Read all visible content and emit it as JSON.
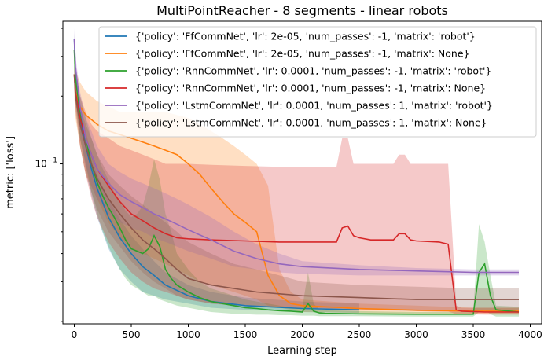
{
  "chart_data": {
    "type": "line",
    "title": "MultiPointReacher - 8 segments - linear robots",
    "xlabel": "Learning step",
    "ylabel": "metric: ['loss']",
    "xlim": [
      -100,
      4100
    ],
    "ylim": [
      0.0195,
      0.43
    ],
    "yscale": "log",
    "grid": false,
    "legend_position": "top-right",
    "x_ticks": [
      0,
      500,
      1000,
      1500,
      2000,
      2500,
      3000,
      3500,
      4000
    ],
    "x_tick_labels": [
      "0",
      "500",
      "1000",
      "1500",
      "2000",
      "2500",
      "3000",
      "3500",
      "4000"
    ],
    "y_ticks": [
      0.1
    ],
    "y_tick_labels": [
      "10^{-1}"
    ],
    "series": [
      {
        "name": "{'policy': 'FfCommNet', 'lr': 2e-05, 'num_passes': -1, 'matrix': 'robot'}",
        "color": "#1f77b4",
        "x": [
          0,
          10,
          50,
          100,
          150,
          200,
          300,
          400,
          500,
          600,
          700,
          800,
          1000,
          1200,
          1500,
          2000,
          2500
        ],
        "y": [
          0.36,
          0.25,
          0.16,
          0.12,
          0.095,
          0.078,
          0.058,
          0.047,
          0.04,
          0.035,
          0.032,
          0.029,
          0.026,
          0.0245,
          0.0235,
          0.0228,
          0.0225
        ],
        "upper": [
          0.38,
          0.27,
          0.18,
          0.14,
          0.11,
          0.09,
          0.07,
          0.057,
          0.048,
          0.042,
          0.037,
          0.033,
          0.029,
          0.027,
          0.0255,
          0.0245,
          0.024
        ],
        "lower": [
          0.3,
          0.2,
          0.13,
          0.095,
          0.072,
          0.058,
          0.042,
          0.034,
          0.03,
          0.027,
          0.026,
          0.025,
          0.024,
          0.023,
          0.0225,
          0.022,
          0.0218
        ]
      },
      {
        "name": "{'policy': 'FfCommNet', 'lr': 2e-05, 'num_passes': -1, 'matrix': None}",
        "color": "#ff7f0e",
        "x": [
          0,
          10,
          50,
          100,
          200,
          300,
          400,
          500,
          600,
          700,
          800,
          900,
          1000,
          1100,
          1200,
          1300,
          1400,
          1500,
          1600,
          1700,
          1800,
          1900,
          2000,
          2500,
          3000,
          3500,
          3900
        ],
        "y": [
          0.25,
          0.21,
          0.18,
          0.165,
          0.15,
          0.14,
          0.135,
          0.13,
          0.125,
          0.12,
          0.115,
          0.11,
          0.1,
          0.09,
          0.078,
          0.068,
          0.06,
          0.055,
          0.05,
          0.032,
          0.026,
          0.024,
          0.0235,
          0.0228,
          0.0224,
          0.0222,
          0.0222
        ],
        "upper": [
          0.3,
          0.26,
          0.23,
          0.21,
          0.19,
          0.18,
          0.17,
          0.17,
          0.17,
          0.17,
          0.17,
          0.165,
          0.16,
          0.15,
          0.14,
          0.13,
          0.12,
          0.11,
          0.1,
          0.08,
          0.034,
          0.027,
          0.025,
          0.024,
          0.0235,
          0.023,
          0.023
        ],
        "lower": [
          0.2,
          0.16,
          0.12,
          0.09,
          0.07,
          0.055,
          0.047,
          0.042,
          0.04,
          0.038,
          0.036,
          0.034,
          0.032,
          0.03,
          0.029,
          0.028,
          0.027,
          0.026,
          0.025,
          0.0235,
          0.023,
          0.0225,
          0.022,
          0.0218,
          0.0215,
          0.0215,
          0.0215
        ]
      },
      {
        "name": "{'policy': 'RnnCommNet', 'lr': 0.0001, 'num_passes': -1, 'matrix': 'robot'}",
        "color": "#2ca02c",
        "x": [
          0,
          10,
          50,
          100,
          150,
          200,
          250,
          300,
          350,
          400,
          450,
          500,
          550,
          600,
          650,
          700,
          750,
          800,
          850,
          900,
          1000,
          1100,
          1200,
          1300,
          1400,
          1500,
          1600,
          1700,
          1800,
          1900,
          2000,
          2050,
          2100,
          2150,
          2200,
          2500,
          3000,
          3400,
          3500,
          3550,
          3600,
          3650,
          3700,
          3900
        ],
        "y": [
          0.32,
          0.24,
          0.17,
          0.13,
          0.1,
          0.083,
          0.072,
          0.064,
          0.058,
          0.052,
          0.046,
          0.042,
          0.041,
          0.04,
          0.042,
          0.048,
          0.043,
          0.034,
          0.031,
          0.029,
          0.027,
          0.0255,
          0.0245,
          0.024,
          0.0235,
          0.023,
          0.0228,
          0.0225,
          0.0223,
          0.0222,
          0.022,
          0.024,
          0.0222,
          0.0218,
          0.0217,
          0.0216,
          0.0215,
          0.0215,
          0.0215,
          0.033,
          0.036,
          0.026,
          0.0225,
          0.022
        ],
        "upper": [
          0.36,
          0.27,
          0.2,
          0.16,
          0.13,
          0.11,
          0.095,
          0.085,
          0.075,
          0.068,
          0.062,
          0.058,
          0.06,
          0.065,
          0.08,
          0.105,
          0.085,
          0.06,
          0.05,
          0.04,
          0.034,
          0.03,
          0.028,
          0.027,
          0.026,
          0.025,
          0.0245,
          0.024,
          0.0235,
          0.023,
          0.023,
          0.033,
          0.024,
          0.0226,
          0.0224,
          0.0222,
          0.022,
          0.022,
          0.022,
          0.054,
          0.045,
          0.032,
          0.0235,
          0.0232
        ],
        "lower": [
          0.26,
          0.19,
          0.13,
          0.1,
          0.075,
          0.06,
          0.05,
          0.043,
          0.038,
          0.034,
          0.031,
          0.029,
          0.028,
          0.027,
          0.026,
          0.026,
          0.025,
          0.0245,
          0.024,
          0.0235,
          0.023,
          0.0225,
          0.022,
          0.0218,
          0.0216,
          0.0215,
          0.0214,
          0.0214,
          0.0213,
          0.0213,
          0.0212,
          0.0212,
          0.0212,
          0.0211,
          0.0211,
          0.0211,
          0.021,
          0.021,
          0.021,
          0.022,
          0.0225,
          0.0215,
          0.021,
          0.021
        ]
      },
      {
        "name": "{'policy': 'RnnCommNet', 'lr': 0.0001, 'num_passes': -1, 'matrix': None}",
        "color": "#d62728",
        "x": [
          0,
          10,
          50,
          100,
          150,
          200,
          300,
          400,
          500,
          600,
          700,
          800,
          900,
          1000,
          1200,
          1500,
          1800,
          2000,
          2300,
          2350,
          2400,
          2450,
          2500,
          2600,
          2800,
          2850,
          2900,
          2950,
          3000,
          3200,
          3280,
          3320,
          3350,
          3400,
          3600,
          3900
        ],
        "y": [
          0.25,
          0.21,
          0.16,
          0.13,
          0.11,
          0.095,
          0.08,
          0.068,
          0.06,
          0.056,
          0.052,
          0.049,
          0.047,
          0.0465,
          0.046,
          0.0455,
          0.045,
          0.045,
          0.045,
          0.052,
          0.053,
          0.048,
          0.047,
          0.046,
          0.046,
          0.049,
          0.049,
          0.046,
          0.0455,
          0.045,
          0.044,
          0.03,
          0.0225,
          0.0222,
          0.022,
          0.022
        ],
        "upper": [
          0.27,
          0.24,
          0.2,
          0.17,
          0.15,
          0.14,
          0.13,
          0.12,
          0.115,
          0.11,
          0.105,
          0.1,
          0.1,
          0.1,
          0.099,
          0.098,
          0.097,
          0.097,
          0.097,
          0.13,
          0.13,
          0.1,
          0.1,
          0.1,
          0.1,
          0.11,
          0.11,
          0.1,
          0.1,
          0.1,
          0.1,
          0.045,
          0.0235,
          0.023,
          0.023,
          0.023
        ],
        "lower": [
          0.22,
          0.18,
          0.12,
          0.09,
          0.07,
          0.058,
          0.045,
          0.038,
          0.033,
          0.03,
          0.028,
          0.027,
          0.026,
          0.025,
          0.024,
          0.0235,
          0.023,
          0.023,
          0.0228,
          0.0228,
          0.0227,
          0.0227,
          0.0226,
          0.0225,
          0.0224,
          0.0224,
          0.0224,
          0.0223,
          0.0222,
          0.0221,
          0.0221,
          0.0218,
          0.0215,
          0.0215,
          0.0214,
          0.0214
        ]
      },
      {
        "name": "{'policy': 'LstmCommNet', 'lr': 0.0001, 'num_passes': 1, 'matrix': 'robot'}",
        "color": "#9467bd",
        "x": [
          0,
          10,
          50,
          100,
          150,
          200,
          300,
          400,
          500,
          600,
          700,
          800,
          900,
          1000,
          1200,
          1400,
          1600,
          1800,
          2000,
          2500,
          3000,
          3500,
          3900
        ],
        "y": [
          0.36,
          0.27,
          0.18,
          0.13,
          0.11,
          0.095,
          0.082,
          0.073,
          0.068,
          0.064,
          0.06,
          0.057,
          0.054,
          0.051,
          0.046,
          0.041,
          0.038,
          0.036,
          0.035,
          0.034,
          0.0335,
          0.033,
          0.033
        ],
        "upper": [
          0.4,
          0.3,
          0.21,
          0.16,
          0.14,
          0.12,
          0.1,
          0.092,
          0.086,
          0.082,
          0.078,
          0.074,
          0.07,
          0.066,
          0.058,
          0.05,
          0.044,
          0.04,
          0.037,
          0.0355,
          0.0345,
          0.034,
          0.034
        ],
        "lower": [
          0.3,
          0.22,
          0.14,
          0.1,
          0.08,
          0.07,
          0.06,
          0.055,
          0.052,
          0.05,
          0.047,
          0.045,
          0.043,
          0.041,
          0.038,
          0.035,
          0.034,
          0.033,
          0.0325,
          0.032,
          0.032,
          0.032,
          0.032
        ]
      },
      {
        "name": "{'policy': 'LstmCommNet', 'lr': 0.0001, 'num_passes': 1, 'matrix': None}",
        "color": "#8c564b",
        "x": [
          0,
          10,
          50,
          100,
          150,
          200,
          300,
          400,
          500,
          600,
          700,
          800,
          900,
          1000,
          1200,
          1400,
          1600,
          1800,
          2000,
          2500,
          3000,
          3500,
          3900
        ],
        "y": [
          0.25,
          0.2,
          0.15,
          0.12,
          0.1,
          0.086,
          0.07,
          0.06,
          0.052,
          0.046,
          0.042,
          0.038,
          0.034,
          0.031,
          0.029,
          0.028,
          0.027,
          0.0265,
          0.026,
          0.0255,
          0.025,
          0.025,
          0.025
        ],
        "upper": [
          0.28,
          0.23,
          0.18,
          0.15,
          0.13,
          0.11,
          0.09,
          0.08,
          0.072,
          0.066,
          0.06,
          0.055,
          0.05,
          0.045,
          0.04,
          0.036,
          0.034,
          0.032,
          0.03,
          0.029,
          0.0285,
          0.028,
          0.028
        ],
        "lower": [
          0.22,
          0.17,
          0.12,
          0.09,
          0.075,
          0.063,
          0.05,
          0.043,
          0.037,
          0.033,
          0.03,
          0.028,
          0.026,
          0.025,
          0.024,
          0.0235,
          0.0232,
          0.023,
          0.0228,
          0.0225,
          0.0222,
          0.022,
          0.022
        ]
      }
    ]
  }
}
